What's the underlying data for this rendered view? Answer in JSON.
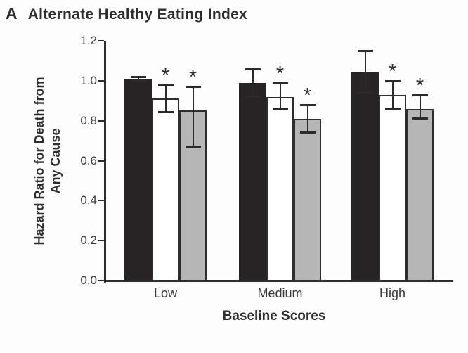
{
  "panel_label": "A",
  "figure_title": "Alternate Healthy Eating Index",
  "chart_data": {
    "type": "bar",
    "panel": "A",
    "title": "Alternate Healthy Eating Index",
    "xlabel": "Baseline Scores",
    "ylabel": "Hazard Ratio for Death from Any Cause",
    "ylabel_lines": [
      "Hazard Ratio for Death from",
      "Any Cause"
    ],
    "categories": [
      "Low",
      "Medium",
      "High"
    ],
    "series": [
      {
        "name": "black",
        "fill": "#282425",
        "values": [
          1.01,
          0.99,
          1.04
        ],
        "ci_low": [
          1.0,
          0.92,
          0.94
        ],
        "ci_high": [
          1.02,
          1.06,
          1.15
        ],
        "significant": [
          false,
          false,
          false
        ]
      },
      {
        "name": "white",
        "fill": "#ffffff",
        "values": [
          0.91,
          0.92,
          0.93
        ],
        "ci_low": [
          0.84,
          0.86,
          0.86
        ],
        "ci_high": [
          0.98,
          0.99,
          1.0
        ],
        "significant": [
          true,
          true,
          true
        ]
      },
      {
        "name": "gray",
        "fill": "#b6b6b6",
        "values": [
          0.85,
          0.81,
          0.86
        ],
        "ci_low": [
          0.67,
          0.74,
          0.81
        ],
        "ci_high": [
          0.97,
          0.88,
          0.93
        ],
        "significant": [
          true,
          true,
          true
        ]
      }
    ],
    "significance_marker": "*",
    "error_bars": true,
    "legend": "none",
    "grid": false,
    "ylim": [
      0.0,
      1.2
    ],
    "yticks": [
      0.0,
      0.2,
      0.4,
      0.6,
      0.8,
      1.0,
      1.2
    ],
    "ytick_labels": [
      "0.0",
      "0.2",
      "0.4",
      "0.6",
      "0.8",
      "1.0",
      "1.2"
    ]
  },
  "colors": {
    "axis": "#2e2e2e",
    "text": "#3a3a3a",
    "bar_black": "#282425",
    "bar_white": "#ffffff",
    "bar_gray": "#b6b6b6"
  }
}
